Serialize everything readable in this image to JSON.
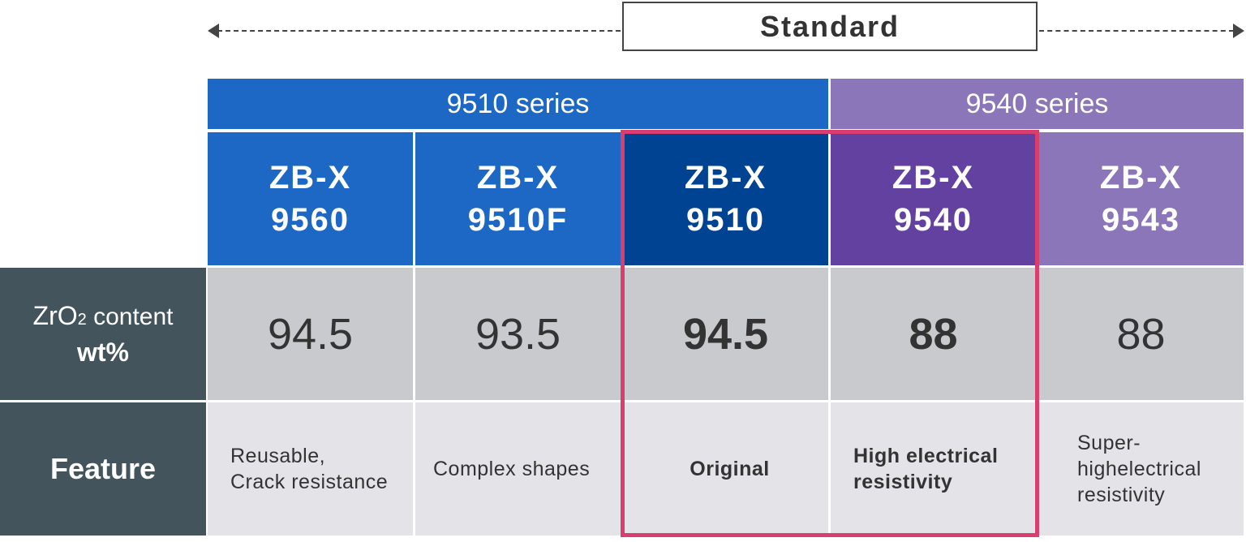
{
  "header": {
    "standard_label": "Standard"
  },
  "series": [
    {
      "label": "9510 series",
      "color": "#1c68c4"
    },
    {
      "label": "9540 series",
      "color": "#8a76b8"
    }
  ],
  "products": [
    {
      "line1": "ZB-X",
      "line2": "9560",
      "color": "#1c68c4"
    },
    {
      "line1": "ZB-X",
      "line2": "9510F",
      "color": "#1c68c4"
    },
    {
      "line1": "ZB-X",
      "line2": "9510",
      "color": "#004393"
    },
    {
      "line1": "ZB-X",
      "line2": "9540",
      "color": "#6341a0"
    },
    {
      "line1": "ZB-X",
      "line2": "9543",
      "color": "#8a76b8"
    }
  ],
  "rows": {
    "content": {
      "label_main": "ZrO",
      "label_sub": "2",
      "label_rest": " content",
      "label_line2": "wt%"
    },
    "feature": {
      "label": "Feature"
    }
  },
  "content_values": [
    "94.5",
    "93.5",
    "94.5",
    "88",
    "88"
  ],
  "features": [
    "Reusable,\nCrack resistance",
    "Complex shapes",
    "Original",
    "High electrical\nresistivity",
    "Super-\nhighelectrical\nresistivity"
  ],
  "highlight_color": "#d93e6e"
}
